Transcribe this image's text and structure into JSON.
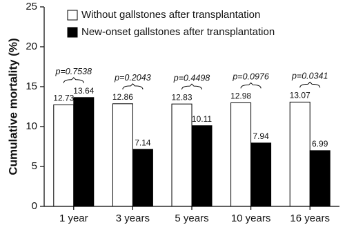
{
  "chart_data": {
    "type": "bar",
    "y_label": "Cumulative mortality (%)",
    "categories": [
      "1 year",
      "3 years",
      "5 years",
      "10 years",
      "16 years"
    ],
    "series": [
      {
        "name": "Without gallstones after transplantation",
        "color": "#ffffff",
        "values": [
          12.73,
          12.86,
          12.83,
          12.98,
          13.07
        ]
      },
      {
        "name": "New-onset gallstones after transplantation",
        "color": "#000000",
        "values": [
          13.64,
          7.14,
          10.11,
          7.94,
          6.99
        ]
      }
    ],
    "annotations": [
      "p=0.7538",
      "p=0.2043",
      "p=0.4498",
      "p=0.0976",
      "p=0.0341"
    ],
    "ylim": [
      0,
      25
    ],
    "yticks": [
      0,
      5,
      10,
      15,
      20,
      25
    ],
    "legend": "top-left"
  }
}
